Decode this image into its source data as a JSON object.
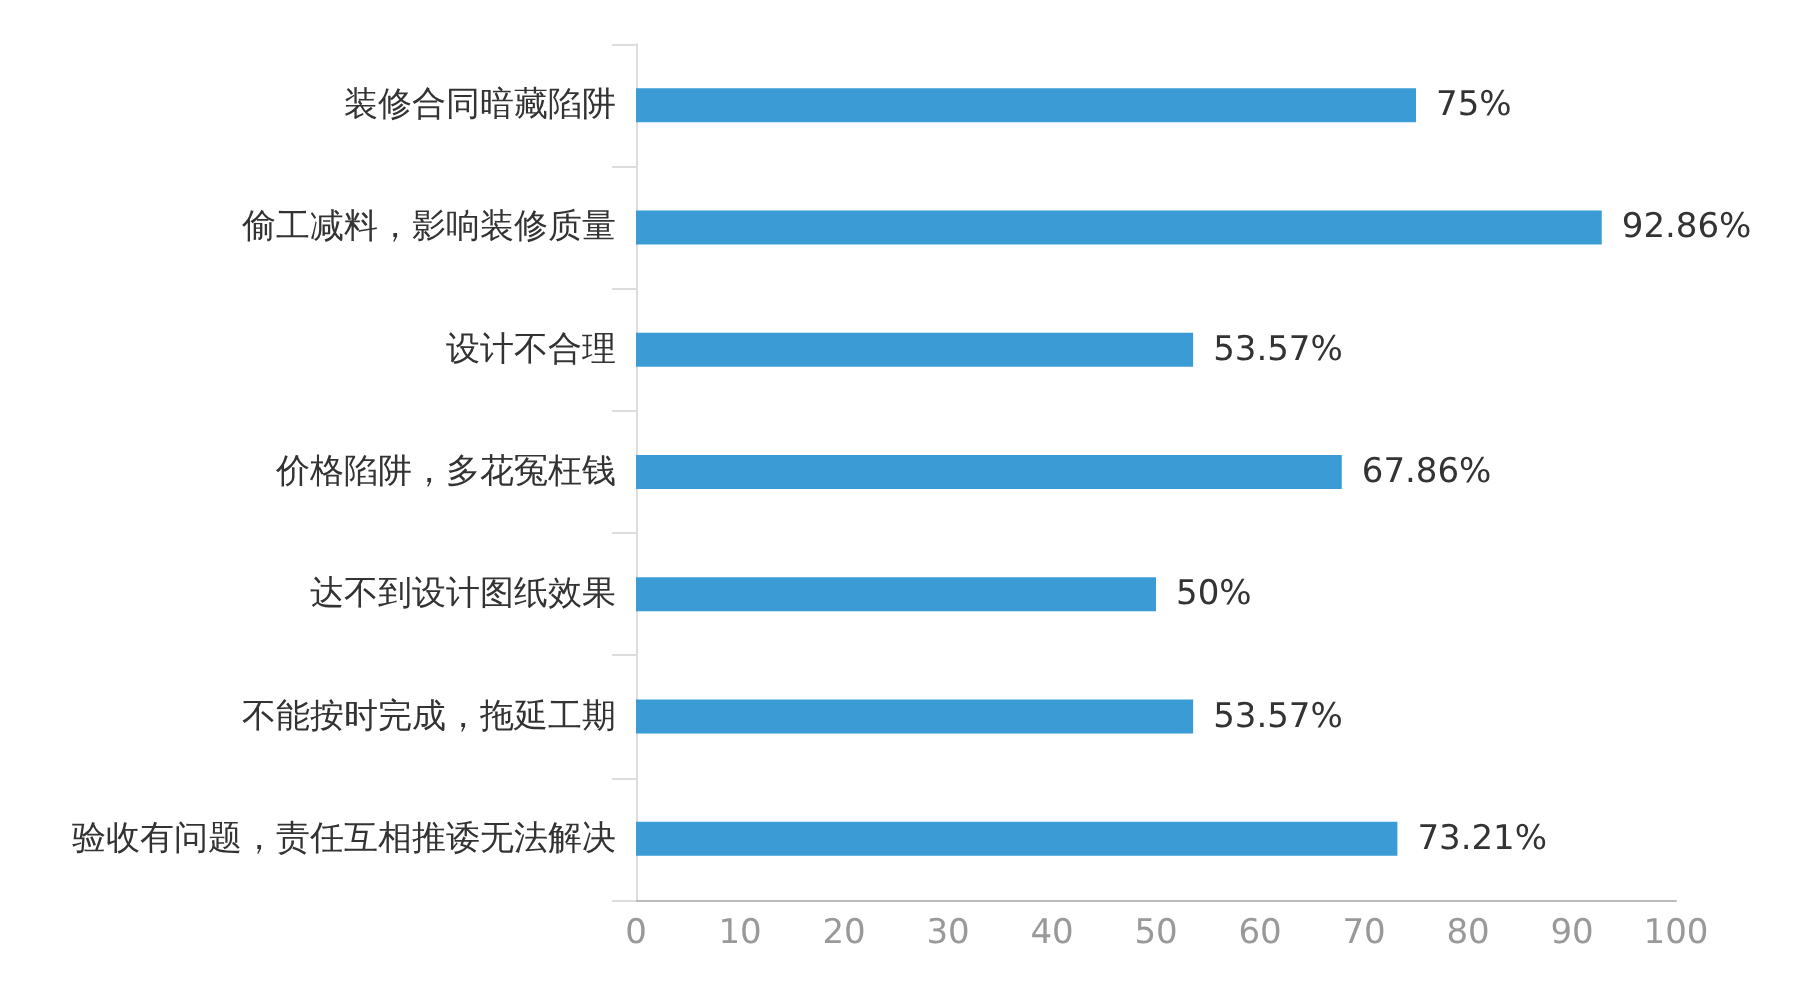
{
  "chart_data": {
    "type": "bar",
    "orientation": "horizontal",
    "categories": [
      "装修合同暗藏陷阱",
      "偷工减料，影响装修质量",
      "设计不合理",
      "价格陷阱，多花冤枉钱",
      "达不到设计图纸效果",
      "不能按时完成，拖延工期",
      "验收有问题，责任互相推诿无法解决"
    ],
    "values": [
      75,
      92.86,
      53.57,
      67.86,
      50,
      53.57,
      73.21
    ],
    "value_labels": [
      "75%",
      "92.86%",
      "53.57%",
      "67.86%",
      "50%",
      "53.57%",
      "73.21%"
    ],
    "color": "#3a9bd5",
    "xlim": [
      0,
      100
    ],
    "xticks": [
      0,
      10,
      20,
      30,
      40,
      50,
      60,
      70,
      80,
      90,
      100
    ],
    "grid": false
  }
}
